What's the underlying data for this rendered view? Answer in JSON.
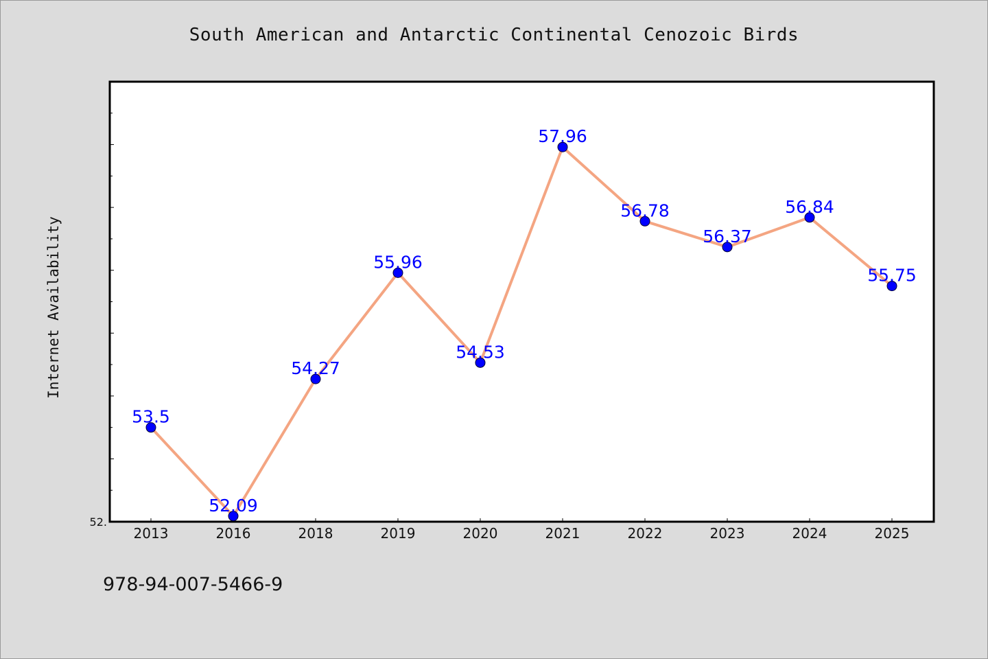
{
  "chart_data": {
    "type": "line",
    "title": "South American and Antarctic Continental Cenozoic Birds",
    "xlabel": "",
    "ylabel": "Internet Availability",
    "categories": [
      "2013",
      "2016",
      "2018",
      "2019",
      "2020",
      "2021",
      "2022",
      "2023",
      "2024",
      "2025"
    ],
    "series": [
      {
        "values": [
          53.5,
          52.09,
          54.27,
          55.96,
          54.53,
          57.96,
          56.78,
          56.37,
          56.84,
          55.75
        ],
        "data_labels": [
          "53.5",
          "52.09",
          "54.27",
          "55.96",
          "54.53",
          "57.96",
          "56.78",
          "56.37",
          "56.84",
          "55.75"
        ]
      }
    ],
    "ylim": [
      52.0,
      59.0
    ],
    "y_tick_labels": [
      {
        "value": 52.0,
        "label": "52."
      }
    ],
    "y_minor_tick_step": 0.5,
    "grid": false,
    "legend": "none",
    "line_color": "#f4a582",
    "marker_color": "#0000ff",
    "label_color": "#0000ff"
  },
  "footer": {
    "code": "978-94-007-5466-9"
  },
  "colors": {
    "background": "#dcdcdc",
    "plot_background": "#ffffff",
    "axis": "#000000"
  }
}
